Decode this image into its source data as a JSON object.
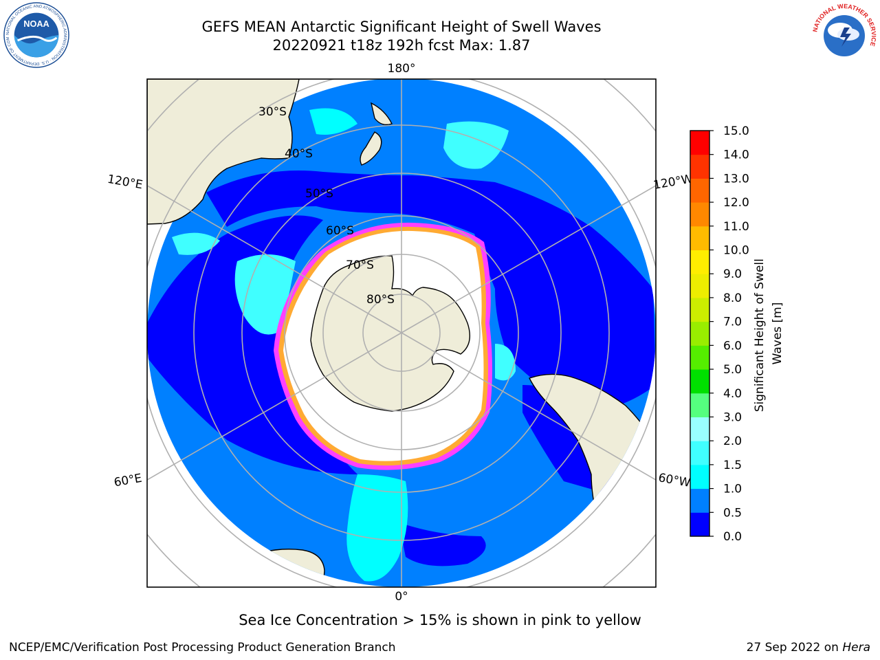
{
  "title": {
    "line1": "GEFS MEAN Antarctic Significant Height of Swell Waves",
    "line2": "20220921 t18z 192h fcst   Max: 1.87"
  },
  "map": {
    "projection": "south polar stereographic",
    "longitude_labels": [
      "180°",
      "120°E",
      "120°W",
      "60°E",
      "60°W",
      "0°"
    ],
    "latitude_labels": [
      "30°S",
      "40°S",
      "50°S",
      "60°S",
      "70°S",
      "80°S"
    ],
    "graticule_color": "#b0b0b0",
    "land_color": "#efedd9",
    "ice_color": "#ffffff",
    "ice_edge_colors": [
      "#ff40ff",
      "#ffaa33",
      "#ffe000"
    ]
  },
  "colorbar": {
    "label": "Significant Height of Swell Waves [m]",
    "ticks": [
      "0.0",
      "0.5",
      "1.0",
      "1.5",
      "2.0",
      "3.0",
      "4.0",
      "5.0",
      "6.0",
      "7.0",
      "8.0",
      "9.0",
      "10.0",
      "11.0",
      "12.0",
      "13.0",
      "14.0",
      "15.0"
    ],
    "colors": [
      "#0000ff",
      "#0080ff",
      "#00ffff",
      "#40ffff",
      "#99ffff",
      "#55ff7f",
      "#00e000",
      "#55ee00",
      "#99ee00",
      "#ccee00",
      "#eeee00",
      "#ffee00",
      "#ffbb00",
      "#ff8800",
      "#ff6600",
      "#ff3300",
      "#ff0000"
    ]
  },
  "footer": {
    "note": "Sea Ice Concentration > 15% is shown in pink to yellow",
    "credit_left": "NCEP/EMC/Verification Post Processing Product Generation Branch",
    "date": "27 Sep 2022 on ",
    "machine": "Hera"
  },
  "logos": {
    "noaa_text": "NOAA",
    "noaa_ring": "NATIONAL OCEANIC AND ATMOSPHERIC ADMINISTRATION · U.S. DEPARTMENT OF COMMERCE",
    "nws_ring": "NATIONAL WEATHER SERVICE"
  }
}
